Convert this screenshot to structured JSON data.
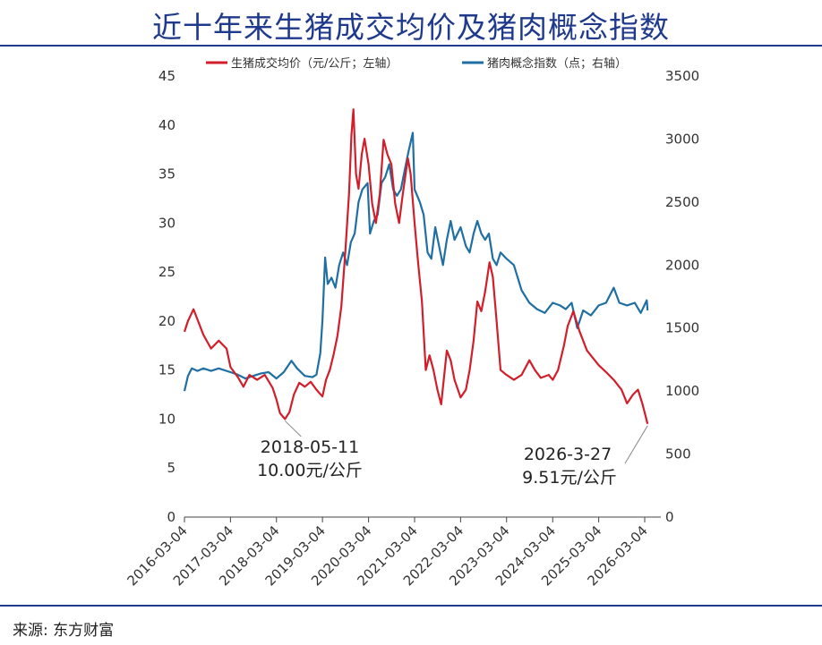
{
  "header": {
    "title": "近十年来生猪成交均价及猪肉概念指数"
  },
  "footer": {
    "source": "来源: 东方财富"
  },
  "colors": {
    "title": "#1f3a8c",
    "red": "#d21e2b",
    "blue": "#1f6fa3"
  },
  "chart_data": {
    "type": "line",
    "title": "近十年来生猪成交均价及猪肉概念指数",
    "xlabel": "",
    "x_ticks": [
      "2016-03-04",
      "2017-03-04",
      "2018-03-04",
      "2019-03-04",
      "2020-03-04",
      "2021-03-04",
      "2022-03-04",
      "2023-03-04",
      "2024-03-04",
      "2025-03-04",
      "2026-03-04"
    ],
    "y_left": {
      "lim": [
        0,
        45
      ],
      "ticks": [
        "0",
        "5",
        "10",
        "15",
        "20",
        "25",
        "30",
        "35",
        "40",
        "45"
      ]
    },
    "y_right": {
      "lim": [
        0,
        3500
      ],
      "ticks": [
        "0",
        "500",
        "1000",
        "1500",
        "2000",
        "2500",
        "3000",
        "3500"
      ]
    },
    "legend": {
      "position": "top"
    },
    "series": [
      {
        "name": "生猪成交均价（元/公斤；左轴）",
        "axis": "left",
        "color": "#d21e2b",
        "points": [
          [
            "2016-03-04",
            18.9
          ],
          [
            "2016-04-01",
            20.0
          ],
          [
            "2016-05-15",
            21.2
          ],
          [
            "2016-06-20",
            20.0
          ],
          [
            "2016-08-01",
            18.6
          ],
          [
            "2016-10-01",
            17.2
          ],
          [
            "2016-12-01",
            18.0
          ],
          [
            "2017-02-01",
            17.2
          ],
          [
            "2017-03-04",
            15.3
          ],
          [
            "2017-05-01",
            14.3
          ],
          [
            "2017-06-15",
            13.3
          ],
          [
            "2017-08-01",
            14.5
          ],
          [
            "2017-10-01",
            14.0
          ],
          [
            "2017-12-01",
            14.5
          ],
          [
            "2018-02-01",
            13.2
          ],
          [
            "2018-03-04",
            12.0
          ],
          [
            "2018-04-01",
            10.6
          ],
          [
            "2018-05-11",
            10.0
          ],
          [
            "2018-06-15",
            10.7
          ],
          [
            "2018-07-20",
            12.5
          ],
          [
            "2018-09-01",
            13.7
          ],
          [
            "2018-10-15",
            13.3
          ],
          [
            "2018-12-01",
            13.8
          ],
          [
            "2019-01-15",
            13.0
          ],
          [
            "2019-03-04",
            12.3
          ],
          [
            "2019-04-01",
            14.0
          ],
          [
            "2019-05-01",
            15.0
          ],
          [
            "2019-06-01",
            16.6
          ],
          [
            "2019-07-01",
            18.5
          ],
          [
            "2019-08-01",
            21.5
          ],
          [
            "2019-09-01",
            27.0
          ],
          [
            "2019-10-01",
            33.0
          ],
          [
            "2019-10-20",
            39.0
          ],
          [
            "2019-11-05",
            41.6
          ],
          [
            "2019-11-25",
            35.0
          ],
          [
            "2019-12-15",
            33.5
          ],
          [
            "2020-01-10",
            37.0
          ],
          [
            "2020-02-01",
            38.6
          ],
          [
            "2020-03-04",
            36.0
          ],
          [
            "2020-04-01",
            32.0
          ],
          [
            "2020-05-01",
            30.0
          ],
          [
            "2020-06-01",
            33.0
          ],
          [
            "2020-07-01",
            38.5
          ],
          [
            "2020-08-01",
            37.0
          ],
          [
            "2020-09-01",
            36.0
          ],
          [
            "2020-10-01",
            32.0
          ],
          [
            "2020-11-01",
            30.0
          ],
          [
            "2020-12-01",
            33.0
          ],
          [
            "2021-01-10",
            36.6
          ],
          [
            "2021-02-01",
            35.0
          ],
          [
            "2021-03-04",
            30.0
          ],
          [
            "2021-04-01",
            26.0
          ],
          [
            "2021-05-01",
            22.0
          ],
          [
            "2021-06-01",
            15.0
          ],
          [
            "2021-07-01",
            16.5
          ],
          [
            "2021-08-01",
            15.0
          ],
          [
            "2021-09-01",
            13.0
          ],
          [
            "2021-10-01",
            11.5
          ],
          [
            "2021-11-15",
            17.0
          ],
          [
            "2021-12-15",
            16.0
          ],
          [
            "2022-01-15",
            14.0
          ],
          [
            "2022-03-04",
            12.2
          ],
          [
            "2022-04-15",
            13.0
          ],
          [
            "2022-05-15",
            15.0
          ],
          [
            "2022-06-15",
            18.0
          ],
          [
            "2022-07-15",
            22.0
          ],
          [
            "2022-08-15",
            21.0
          ],
          [
            "2022-09-15",
            23.0
          ],
          [
            "2022-10-20",
            26.0
          ],
          [
            "2022-11-15",
            24.5
          ],
          [
            "2022-12-15",
            20.0
          ],
          [
            "2023-01-15",
            15.0
          ],
          [
            "2023-03-04",
            14.5
          ],
          [
            "2023-05-01",
            14.0
          ],
          [
            "2023-07-01",
            14.5
          ],
          [
            "2023-09-01",
            16.0
          ],
          [
            "2023-10-15",
            15.0
          ],
          [
            "2023-12-01",
            14.2
          ],
          [
            "2024-02-01",
            14.5
          ],
          [
            "2024-03-04",
            14.0
          ],
          [
            "2024-04-15",
            15.0
          ],
          [
            "2024-06-01",
            17.5
          ],
          [
            "2024-07-01",
            19.5
          ],
          [
            "2024-08-15",
            21.0
          ],
          [
            "2024-10-01",
            19.0
          ],
          [
            "2024-12-01",
            17.0
          ],
          [
            "2025-03-04",
            15.5
          ],
          [
            "2025-05-01",
            14.8
          ],
          [
            "2025-07-01",
            14.0
          ],
          [
            "2025-09-01",
            13.0
          ],
          [
            "2025-10-15",
            11.6
          ],
          [
            "2025-12-01",
            12.5
          ],
          [
            "2026-01-10",
            13.0
          ],
          [
            "2026-02-15",
            11.5
          ],
          [
            "2026-03-27",
            9.51
          ]
        ]
      },
      {
        "name": "猪肉概念指数（点；右轴）",
        "axis": "right",
        "color": "#1f6fa3",
        "points": [
          [
            "2016-03-04",
            1000
          ],
          [
            "2016-04-01",
            1120
          ],
          [
            "2016-05-01",
            1180
          ],
          [
            "2016-06-15",
            1160
          ],
          [
            "2016-08-01",
            1180
          ],
          [
            "2016-10-01",
            1160
          ],
          [
            "2016-12-01",
            1180
          ],
          [
            "2017-03-04",
            1150
          ],
          [
            "2017-05-01",
            1130
          ],
          [
            "2017-07-01",
            1100
          ],
          [
            "2017-09-01",
            1120
          ],
          [
            "2017-11-01",
            1140
          ],
          [
            "2018-01-01",
            1150
          ],
          [
            "2018-03-04",
            1100
          ],
          [
            "2018-05-01",
            1150
          ],
          [
            "2018-07-01",
            1240
          ],
          [
            "2018-08-15",
            1180
          ],
          [
            "2018-10-15",
            1120
          ],
          [
            "2018-12-15",
            1110
          ],
          [
            "2019-01-15",
            1130
          ],
          [
            "2019-02-15",
            1300
          ],
          [
            "2019-03-04",
            1560
          ],
          [
            "2019-03-25",
            2060
          ],
          [
            "2019-04-15",
            1850
          ],
          [
            "2019-05-15",
            1900
          ],
          [
            "2019-06-15",
            1820
          ],
          [
            "2019-07-15",
            2000
          ],
          [
            "2019-08-15",
            2100
          ],
          [
            "2019-09-15",
            2000
          ],
          [
            "2019-10-15",
            2180
          ],
          [
            "2019-11-15",
            2250
          ],
          [
            "2019-12-15",
            2500
          ],
          [
            "2020-01-15",
            2600
          ],
          [
            "2020-02-25",
            2650
          ],
          [
            "2020-03-15",
            2250
          ],
          [
            "2020-04-15",
            2350
          ],
          [
            "2020-05-15",
            2400
          ],
          [
            "2020-06-15",
            2650
          ],
          [
            "2020-07-15",
            2700
          ],
          [
            "2020-08-15",
            2800
          ],
          [
            "2020-09-15",
            2600
          ],
          [
            "2020-10-15",
            2550
          ],
          [
            "2020-11-15",
            2600
          ],
          [
            "2020-12-15",
            2750
          ],
          [
            "2021-01-15",
            2900
          ],
          [
            "2021-02-18",
            3050
          ],
          [
            "2021-03-04",
            2600
          ],
          [
            "2021-04-15",
            2500
          ],
          [
            "2021-05-15",
            2400
          ],
          [
            "2021-06-15",
            2100
          ],
          [
            "2021-07-15",
            2050
          ],
          [
            "2021-08-15",
            2300
          ],
          [
            "2021-09-15",
            2150
          ],
          [
            "2021-10-15",
            2000
          ],
          [
            "2021-11-15",
            2200
          ],
          [
            "2021-12-15",
            2350
          ],
          [
            "2022-01-15",
            2200
          ],
          [
            "2022-03-04",
            2300
          ],
          [
            "2022-04-15",
            2150
          ],
          [
            "2022-05-15",
            2100
          ],
          [
            "2022-06-15",
            2250
          ],
          [
            "2022-07-15",
            2350
          ],
          [
            "2022-08-15",
            2250
          ],
          [
            "2022-09-15",
            2200
          ],
          [
            "2022-10-15",
            2250
          ],
          [
            "2022-11-15",
            2050
          ],
          [
            "2022-12-15",
            2000
          ],
          [
            "2023-01-15",
            2100
          ],
          [
            "2023-03-04",
            2050
          ],
          [
            "2023-05-01",
            2000
          ],
          [
            "2023-07-01",
            1800
          ],
          [
            "2023-09-01",
            1700
          ],
          [
            "2023-11-01",
            1650
          ],
          [
            "2024-01-01",
            1620
          ],
          [
            "2024-03-04",
            1700
          ],
          [
            "2024-05-01",
            1680
          ],
          [
            "2024-06-15",
            1650
          ],
          [
            "2024-08-01",
            1700
          ],
          [
            "2024-09-15",
            1500
          ],
          [
            "2024-11-01",
            1640
          ],
          [
            "2025-01-01",
            1600
          ],
          [
            "2025-03-04",
            1680
          ],
          [
            "2025-05-01",
            1700
          ],
          [
            "2025-07-01",
            1820
          ],
          [
            "2025-08-15",
            1700
          ],
          [
            "2025-10-15",
            1680
          ],
          [
            "2025-12-15",
            1700
          ],
          [
            "2026-02-01",
            1620
          ],
          [
            "2026-03-20",
            1720
          ],
          [
            "2026-03-27",
            1640
          ]
        ]
      }
    ],
    "annotations": [
      {
        "x": "2018-05-11",
        "y": 10.0,
        "axis": "left",
        "lines": [
          "2018-05-11",
          "10.00元/公斤"
        ]
      },
      {
        "x": "2026-03-27",
        "y": 9.51,
        "axis": "left",
        "lines": [
          "2026-3-27",
          "9.51元/公斤"
        ]
      }
    ]
  }
}
